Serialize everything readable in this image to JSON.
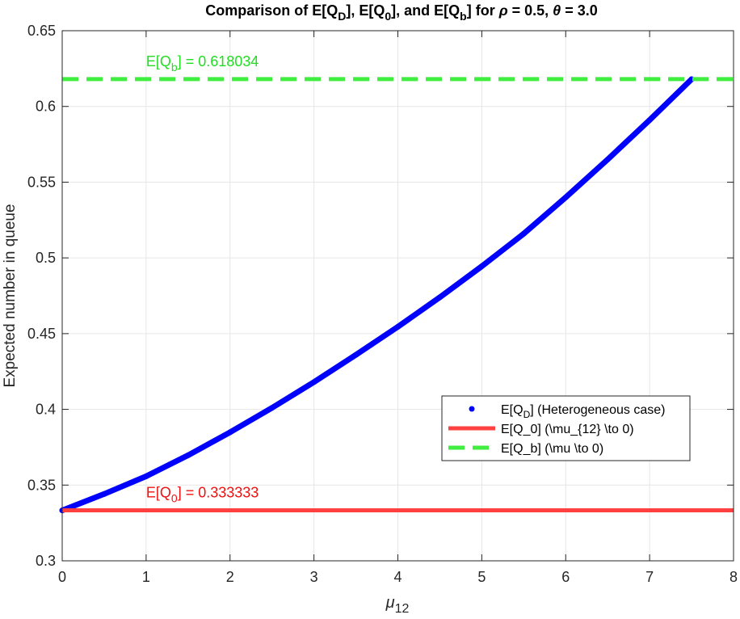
{
  "chart_data": {
    "type": "line",
    "title": {
      "prefix": "Comparison of E[Q",
      "sub_d": "D",
      "mid1": "], E[Q",
      "sub_0": "0",
      "mid2": "], and E[Q",
      "sub_b": "b",
      "mid3": "] for ",
      "rho_symbol": "ρ",
      "rho_text": " = 0.5, ",
      "theta_symbol": "θ",
      "theta_text": " = 3.0"
    },
    "xlabel": {
      "main": "μ",
      "sub": "12"
    },
    "ylabel": "Expected number in queue",
    "xlim": [
      0,
      8
    ],
    "ylim": [
      0.3,
      0.65
    ],
    "xticks": [
      0,
      1,
      2,
      3,
      4,
      5,
      6,
      7,
      8
    ],
    "xtick_labels": [
      "0",
      "1",
      "2",
      "3",
      "4",
      "5",
      "6",
      "7",
      "8"
    ],
    "yticks": [
      0.3,
      0.35,
      0.4,
      0.45,
      0.5,
      0.55,
      0.6,
      0.65
    ],
    "ytick_labels": [
      "0.3",
      "0.35",
      "0.4",
      "0.45",
      "0.5",
      "0.55",
      "0.6",
      "0.65"
    ],
    "grid": true,
    "legend_position": "center-right",
    "series": [
      {
        "kind": "points",
        "color": "#0000ff",
        "x": [
          0,
          0.5,
          1,
          1.5,
          2,
          2.5,
          3,
          3.5,
          4,
          4.5,
          5,
          5.5,
          6,
          6.5,
          7,
          7.5
        ],
        "values": [
          0.3333,
          0.3441,
          0.3558,
          0.3697,
          0.3849,
          0.401,
          0.418,
          0.436,
          0.4545,
          0.474,
          0.4945,
          0.516,
          0.54,
          0.565,
          0.591,
          0.618
        ]
      },
      {
        "kind": "hline",
        "color": "#ff4040",
        "value": 0.333333
      },
      {
        "kind": "hline-dashed",
        "color": "#40ee40",
        "value": 0.618034
      }
    ],
    "legend": [
      {
        "marker": "dot",
        "color": "#0000ff",
        "pre": "E[Q",
        "sub": "D",
        "post": "] (Heterogeneous case)"
      },
      {
        "marker": "line",
        "color": "#ff4040",
        "pre": "E[Q_0] (\\mu_{12} \\to 0)",
        "sub": "",
        "post": ""
      },
      {
        "marker": "dashed",
        "color": "#40ee40",
        "pre": "E[Q_b] (\\mu \\to 0)",
        "sub": "",
        "post": ""
      }
    ],
    "annotations": [
      {
        "pre": "E[Q",
        "sub": "b",
        "post": "] = 0.618034",
        "color": "#22dd22",
        "x": 1,
        "y": 0.618034
      },
      {
        "pre": "E[Q",
        "sub": "0",
        "post": "] = 0.333333",
        "color": "#ee1111",
        "x": 1,
        "y": 0.333333
      }
    ]
  }
}
